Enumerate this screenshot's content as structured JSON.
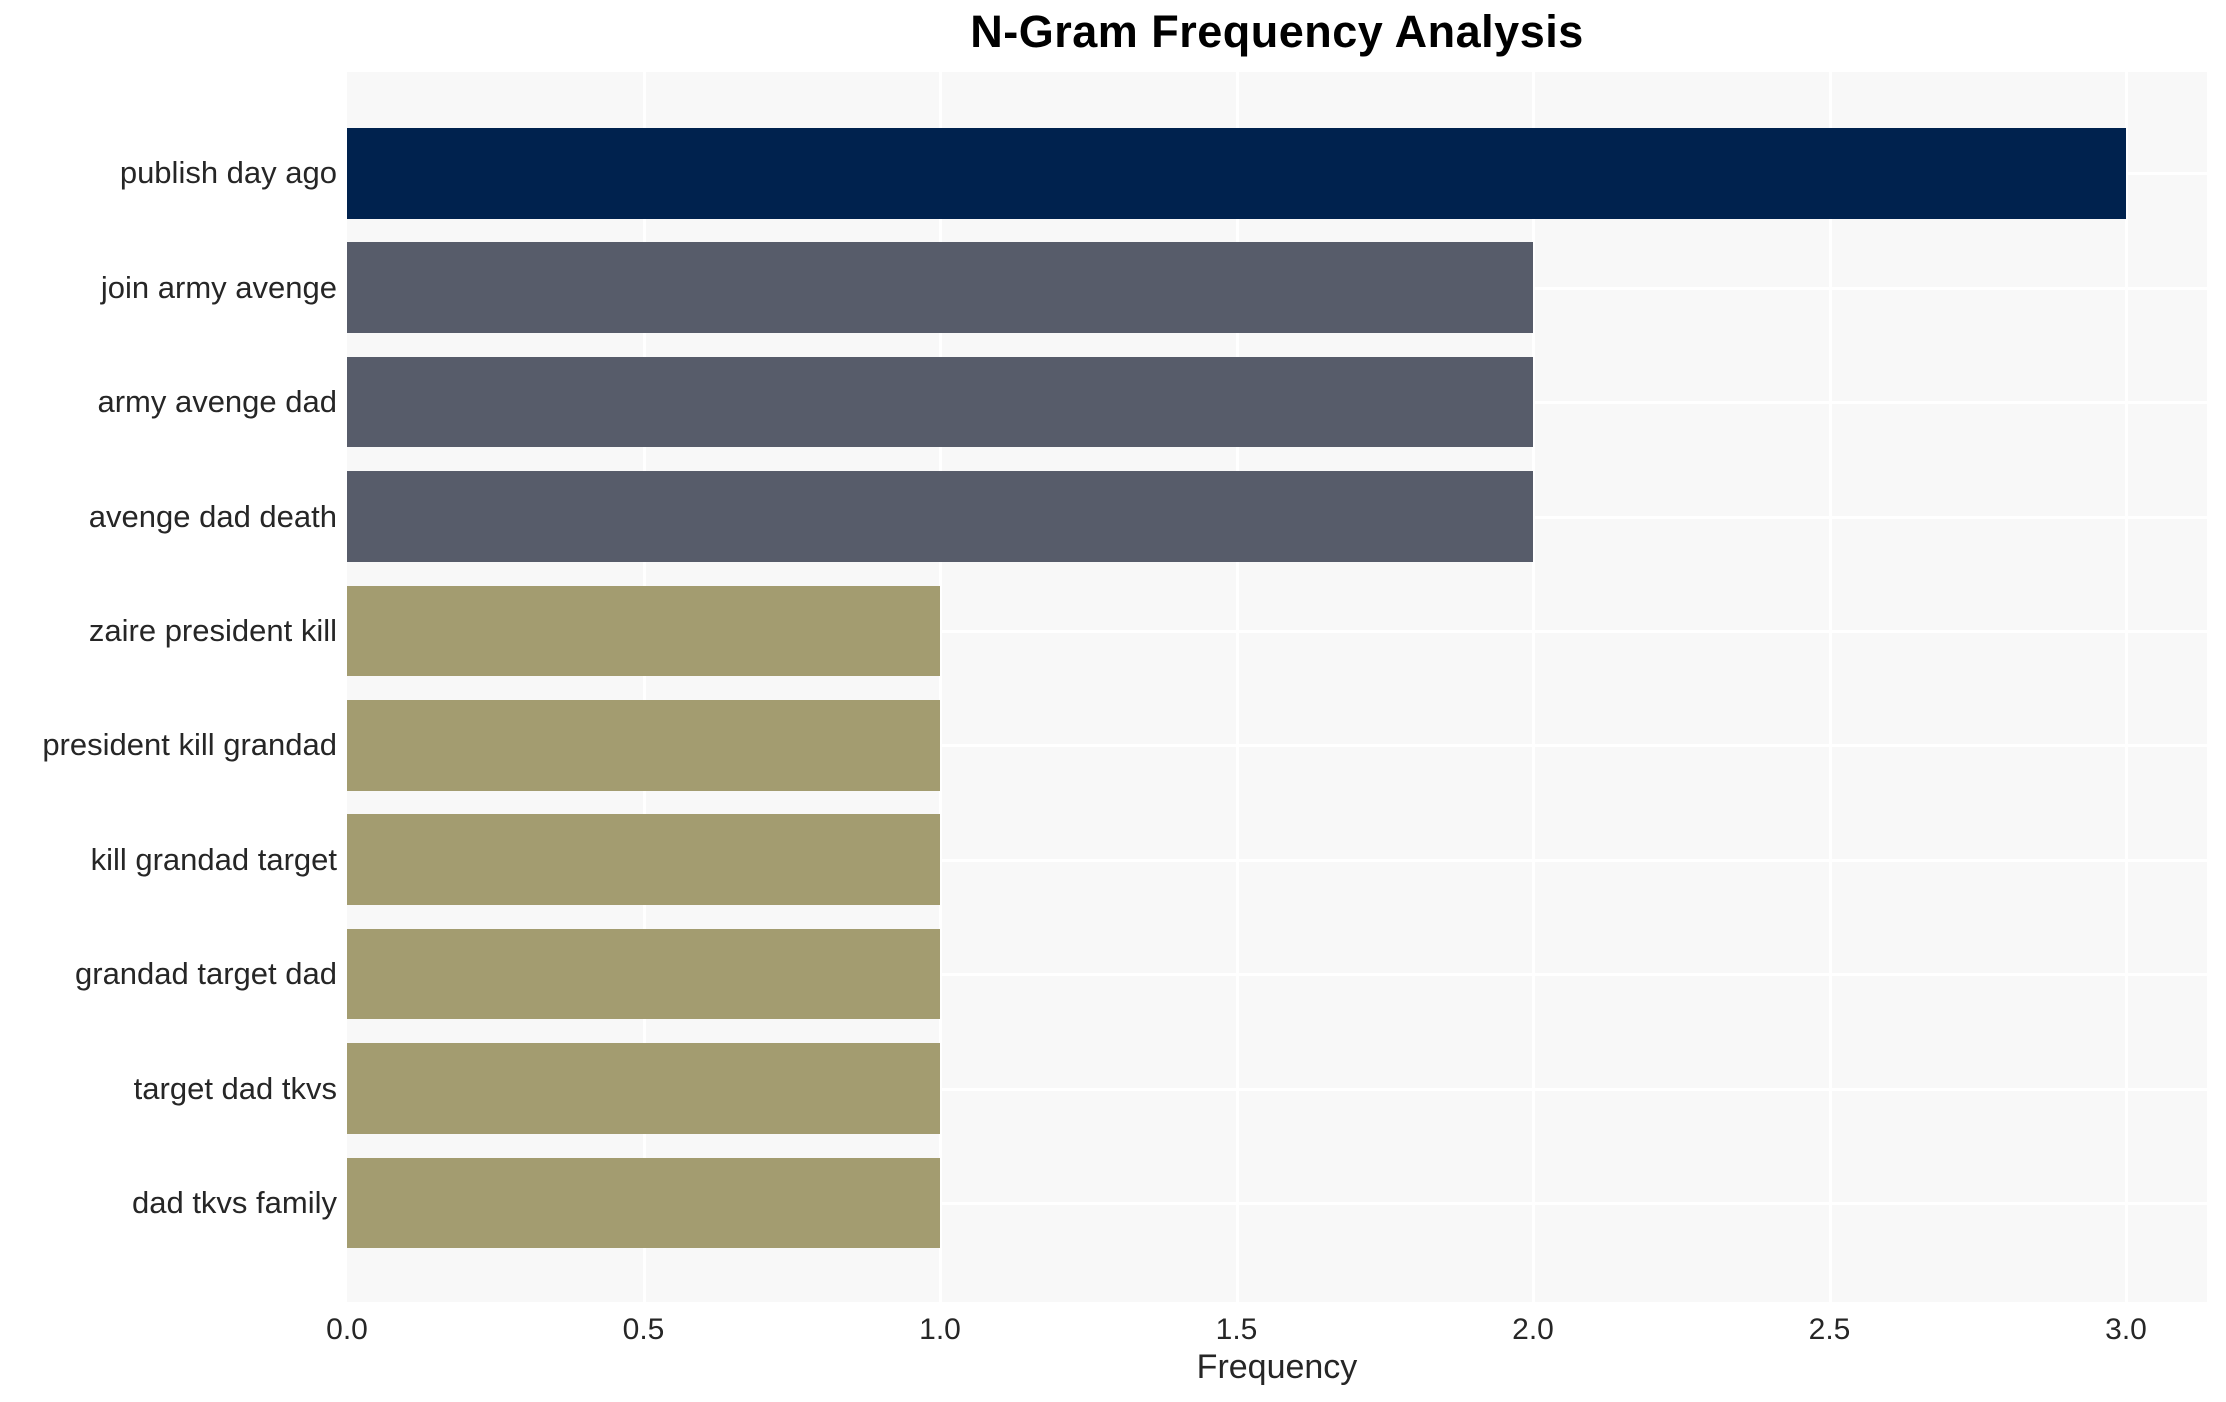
{
  "page": {
    "background": "#ffffff"
  },
  "chart_data": {
    "type": "bar",
    "orientation": "horizontal",
    "title": "N-Gram Frequency Analysis",
    "xlabel": "Frequency",
    "ylabel": "",
    "categories": [
      "publish day ago",
      "join army avenge",
      "army avenge dad",
      "avenge dad death",
      "zaire president kill",
      "president kill grandad",
      "kill grandad target",
      "grandad target dad",
      "target dad tkvs",
      "dad tkvs family"
    ],
    "values": [
      3,
      2,
      2,
      2,
      1,
      1,
      1,
      1,
      1,
      1
    ],
    "bar_colors": [
      "#00224e",
      "#575c6a",
      "#575c6a",
      "#575c6a",
      "#a39c70",
      "#a39c70",
      "#a39c70",
      "#a39c70",
      "#a39c70",
      "#a39c70"
    ],
    "xticks": [
      {
        "value": 0.0,
        "label": "0.0"
      },
      {
        "value": 0.5,
        "label": "0.5"
      },
      {
        "value": 1.0,
        "label": "1.0"
      },
      {
        "value": 1.5,
        "label": "1.5"
      },
      {
        "value": 2.0,
        "label": "2.0"
      },
      {
        "value": 2.5,
        "label": "2.5"
      },
      {
        "value": 3.0,
        "label": "3.0"
      }
    ],
    "xlim": [
      0,
      3.14
    ],
    "grid": true,
    "legend": false,
    "plot_background": "#f8f8f8",
    "grid_color": "#ffffff"
  }
}
